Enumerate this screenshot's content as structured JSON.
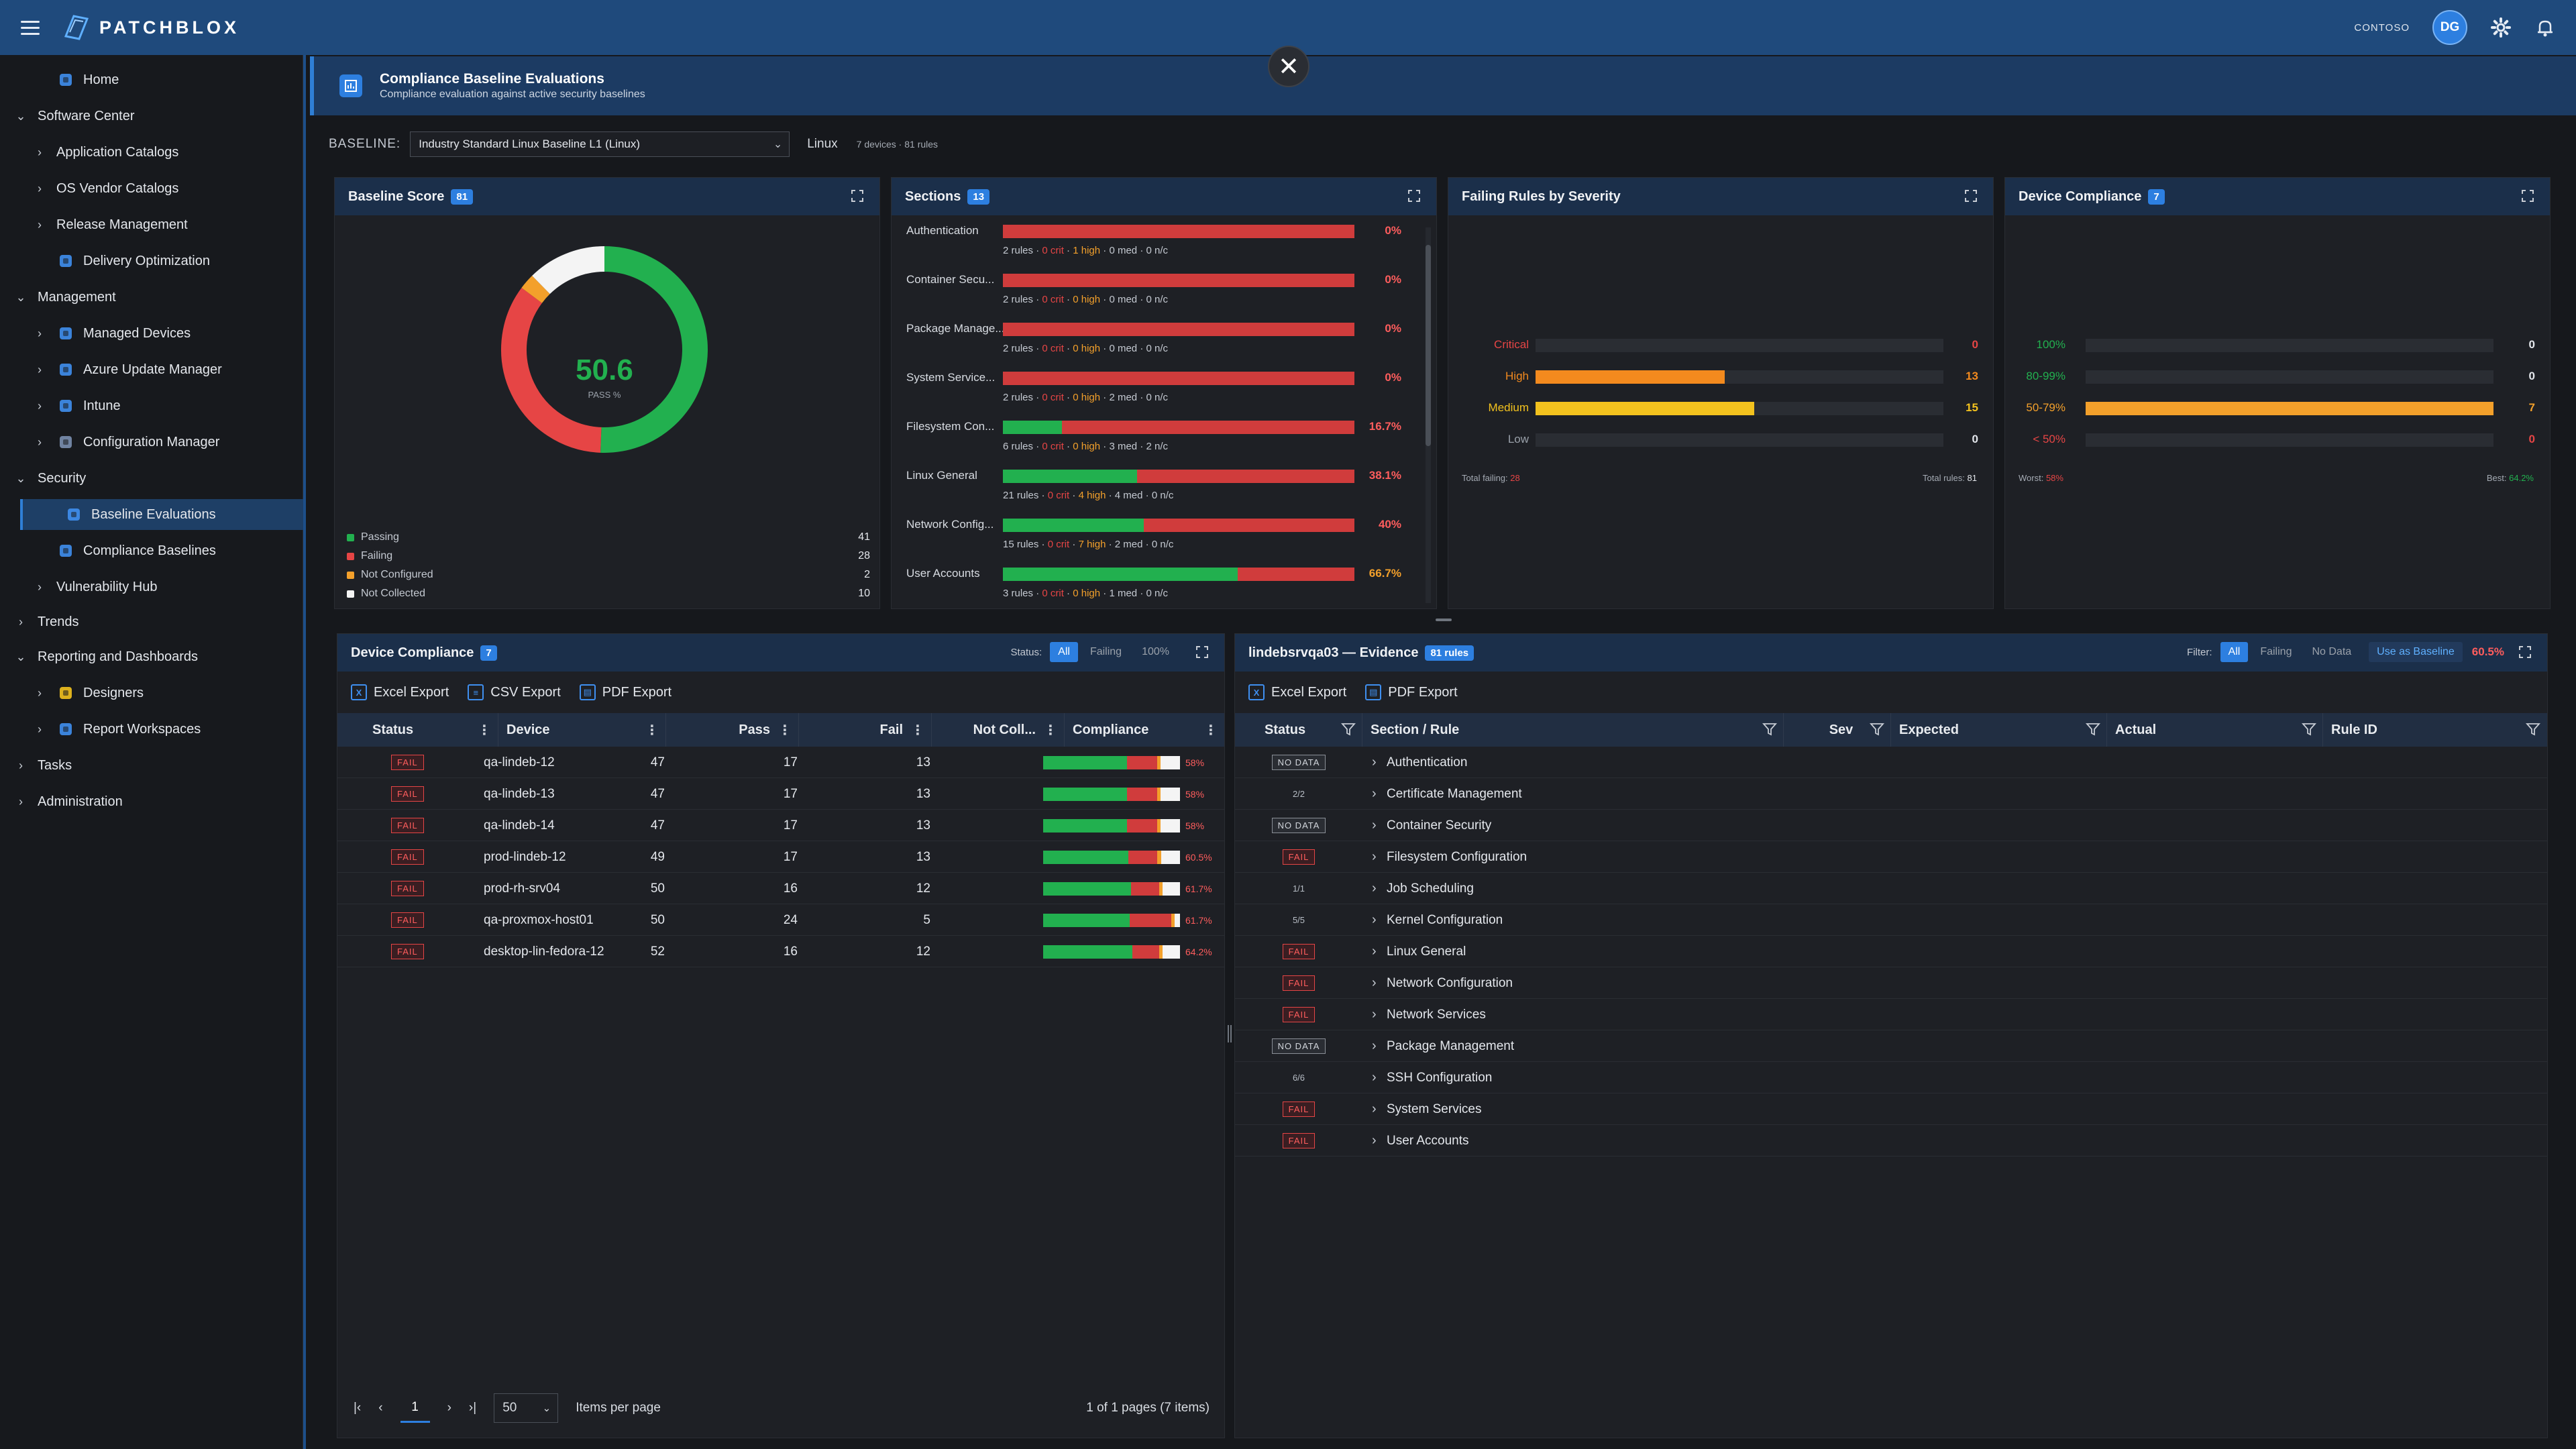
{
  "app": {
    "name": "PATCHBLOX",
    "tenant": "CONTOSO",
    "user_initials": "DG"
  },
  "sidebar": {
    "items": [
      {
        "label": "Home",
        "icon": "home-icon",
        "chev": "",
        "indent": 1,
        "active": false
      },
      {
        "label": "Software Center",
        "icon": "",
        "chev": "down",
        "indent": 0,
        "active": false
      },
      {
        "label": "Application Catalogs",
        "icon": "",
        "chev": "right",
        "indent": 1,
        "active": false
      },
      {
        "label": "OS Vendor Catalogs",
        "icon": "",
        "chev": "right",
        "indent": 1,
        "active": false
      },
      {
        "label": "Release Management",
        "icon": "",
        "chev": "right",
        "indent": 1,
        "active": false
      },
      {
        "label": "Delivery Optimization",
        "icon": "delivery-optimization-icon",
        "chev": "",
        "indent": 1,
        "active": false
      },
      {
        "label": "Management",
        "icon": "",
        "chev": "down",
        "indent": 0,
        "active": false
      },
      {
        "label": "Managed Devices",
        "icon": "globe-icon",
        "chev": "right",
        "indent": 1,
        "active": false
      },
      {
        "label": "Azure Update Manager",
        "icon": "gear-icon",
        "chev": "right",
        "indent": 1,
        "active": false
      },
      {
        "label": "Intune",
        "icon": "intune-icon",
        "chev": "right",
        "indent": 1,
        "active": false
      },
      {
        "label": "Configuration Manager",
        "icon": "configuration-manager-icon",
        "chev": "right",
        "indent": 1,
        "active": false
      },
      {
        "label": "Security",
        "icon": "",
        "chev": "down",
        "indent": 0,
        "active": false
      },
      {
        "label": "Baseline Evaluations",
        "icon": "baseline-evaluations-icon",
        "chev": "",
        "indent": 1,
        "active": true
      },
      {
        "label": "Compliance Baselines",
        "icon": "compliance-baselines-icon",
        "chev": "",
        "indent": 1,
        "active": false
      },
      {
        "label": "Vulnerability Hub",
        "icon": "",
        "chev": "right",
        "indent": 1,
        "active": false
      },
      {
        "label": "Trends",
        "icon": "",
        "chev": "right",
        "indent": 0,
        "active": false
      },
      {
        "label": "Reporting and Dashboards",
        "icon": "",
        "chev": "down",
        "indent": 0,
        "active": false
      },
      {
        "label": "Designers",
        "icon": "designers-icon",
        "chev": "right",
        "indent": 1,
        "active": false
      },
      {
        "label": "Report Workspaces",
        "icon": "report-workspaces-icon",
        "chev": "right",
        "indent": 1,
        "active": false
      },
      {
        "label": "Tasks",
        "icon": "",
        "chev": "right",
        "indent": 0,
        "active": false
      },
      {
        "label": "Administration",
        "icon": "",
        "chev": "right",
        "indent": 0,
        "active": false
      }
    ]
  },
  "banner": {
    "title": "Compliance Baseline Evaluations",
    "subtitle": "Compliance evaluation against active security baselines"
  },
  "baseline": {
    "label": "BASELINE:",
    "selected": "Industry Standard Linux Baseline L1 (Linux)",
    "os": "Linux",
    "meta": "7 devices · 81 rules"
  },
  "score_card": {
    "title": "Baseline Score",
    "badge": "81",
    "score": "50.6",
    "score_label": "PASS %",
    "legend": [
      {
        "label": "Passing",
        "value": "41",
        "color": "#22b04f"
      },
      {
        "label": "Failing",
        "value": "28",
        "color": "#e64545"
      },
      {
        "label": "Not Configured",
        "value": "2",
        "color": "#f3a02b"
      },
      {
        "label": "Not Collected",
        "value": "10",
        "color": "#f4f4f4"
      }
    ]
  },
  "sections_card": {
    "title": "Sections",
    "badge": "13",
    "items": [
      {
        "name": "Authentication",
        "pct": "0%",
        "pass": 0,
        "rules": "2 rules",
        "crit": "0 crit",
        "high": "1 high",
        "med": "0 med",
        "na": "0 n/c"
      },
      {
        "name": "Container Secu...",
        "pct": "0%",
        "pass": 0,
        "rules": "2 rules",
        "crit": "0 crit",
        "high": "0 high",
        "med": "0 med",
        "na": "0 n/c"
      },
      {
        "name": "Package Manage...",
        "pct": "0%",
        "pass": 0,
        "rules": "2 rules",
        "crit": "0 crit",
        "high": "0 high",
        "med": "0 med",
        "na": "0 n/c"
      },
      {
        "name": "System Service...",
        "pct": "0%",
        "pass": 0,
        "rules": "2 rules",
        "crit": "0 crit",
        "high": "0 high",
        "med": "2 med",
        "na": "0 n/c"
      },
      {
        "name": "Filesystem Con...",
        "pct": "16.7%",
        "pass": 16.7,
        "rules": "6 rules",
        "crit": "0 crit",
        "high": "0 high",
        "med": "3 med",
        "na": "2 n/c"
      },
      {
        "name": "Linux General",
        "pct": "38.1%",
        "pass": 38.1,
        "rules": "21 rules",
        "crit": "0 crit",
        "high": "4 high",
        "med": "4 med",
        "na": "0 n/c"
      },
      {
        "name": "Network Config...",
        "pct": "40%",
        "pass": 40,
        "rules": "15 rules",
        "crit": "0 crit",
        "high": "7 high",
        "med": "2 med",
        "na": "0 n/c"
      },
      {
        "name": "User Accounts",
        "pct": "66.7%",
        "pass": 66.7,
        "rules": "3 rules",
        "crit": "0 crit",
        "high": "0 high",
        "med": "1 med",
        "na": "0 n/c"
      }
    ]
  },
  "severity_card": {
    "title": "Failing Rules by Severity",
    "rows": [
      {
        "label": "Critical",
        "value": "0",
        "fraction": 0,
        "color": "#e64545"
      },
      {
        "label": "High",
        "value": "13",
        "fraction": 0.464,
        "color": "#f38a1e"
      },
      {
        "label": "Medium",
        "value": "15",
        "fraction": 0.536,
        "color": "#f3c21e"
      },
      {
        "label": "Low",
        "value": "0",
        "fraction": 0,
        "color": "#9aa1aa"
      }
    ],
    "total_failing_label": "Total failing:",
    "total_failing": "28",
    "total_rules_label": "Total rules:",
    "total_rules": "81"
  },
  "device_compliance_card": {
    "title": "Device Compliance",
    "badge": "7",
    "rows": [
      {
        "label": "100%",
        "value": "0",
        "fraction": 0,
        "color": "#22b04f"
      },
      {
        "label": "80-99%",
        "value": "0",
        "fraction": 0,
        "color": "#22b04f"
      },
      {
        "label": "50-79%",
        "value": "7",
        "fraction": 1,
        "color": "#f3a02b"
      },
      {
        "label": "< 50%",
        "value": "0",
        "fraction": 0,
        "color": "#e64545"
      }
    ],
    "worst_label": "Worst:",
    "worst": "58%",
    "best_label": "Best:",
    "best": "64.2%"
  },
  "device_table": {
    "title": "Device Compliance",
    "badge": "7",
    "status_label": "Status:",
    "chips": [
      "All",
      "Failing",
      "100%"
    ],
    "exports": [
      "Excel Export",
      "CSV Export",
      "PDF Export"
    ],
    "columns": [
      "Status",
      "Device",
      "Pass",
      "Fail",
      "Not Coll...",
      "Compliance"
    ],
    "rows": [
      {
        "status": "FAIL",
        "device": "qa-lindeb-12",
        "pass": "47",
        "fail": "17",
        "nc": "13",
        "pct": "58%",
        "p": 47,
        "f": 17,
        "n": 13
      },
      {
        "status": "FAIL",
        "device": "qa-lindeb-13",
        "pass": "47",
        "fail": "17",
        "nc": "13",
        "pct": "58%",
        "p": 47,
        "f": 17,
        "n": 13
      },
      {
        "status": "FAIL",
        "device": "qa-lindeb-14",
        "pass": "47",
        "fail": "17",
        "nc": "13",
        "pct": "58%",
        "p": 47,
        "f": 17,
        "n": 13
      },
      {
        "status": "FAIL",
        "device": "prod-lindeb-12",
        "pass": "49",
        "fail": "17",
        "nc": "13",
        "pct": "60.5%",
        "p": 49,
        "f": 17,
        "n": 13
      },
      {
        "status": "FAIL",
        "device": "prod-rh-srv04",
        "pass": "50",
        "fail": "16",
        "nc": "12",
        "pct": "61.7%",
        "p": 50,
        "f": 16,
        "n": 12
      },
      {
        "status": "FAIL",
        "device": "qa-proxmox-host01",
        "pass": "50",
        "fail": "24",
        "nc": "5",
        "pct": "61.7%",
        "p": 50,
        "f": 24,
        "n": 5
      },
      {
        "status": "FAIL",
        "device": "desktop-lin-fedora-12",
        "pass": "52",
        "fail": "16",
        "nc": "12",
        "pct": "64.2%",
        "p": 52,
        "f": 16,
        "n": 12
      }
    ],
    "pager": {
      "page": "1",
      "page_size": "50",
      "items_label": "Items per page",
      "info": "1 of 1 pages (7 items)"
    }
  },
  "evidence_table": {
    "title": "lindebsrvqa03 — Evidence",
    "badge": "81 rules",
    "filter_label": "Filter:",
    "chips": [
      "All",
      "Failing",
      "No Data"
    ],
    "use_baseline": "Use as Baseline",
    "pct": "60.5%",
    "exports": [
      "Excel Export",
      "PDF Export"
    ],
    "columns": [
      "Status",
      "Section / Rule",
      "Sev",
      "Expected",
      "Actual",
      "Rule ID"
    ],
    "rows": [
      {
        "status": "NO DATA",
        "kind": "nodata",
        "section": "Authentication"
      },
      {
        "status": "2/2",
        "kind": "frac",
        "section": "Certificate Management"
      },
      {
        "status": "NO DATA",
        "kind": "nodata",
        "section": "Container Security"
      },
      {
        "status": "FAIL",
        "kind": "fail",
        "section": "Filesystem Configuration"
      },
      {
        "status": "1/1",
        "kind": "frac",
        "section": "Job Scheduling"
      },
      {
        "status": "5/5",
        "kind": "frac",
        "section": "Kernel Configuration"
      },
      {
        "status": "FAIL",
        "kind": "fail",
        "section": "Linux General"
      },
      {
        "status": "FAIL",
        "kind": "fail",
        "section": "Network Configuration"
      },
      {
        "status": "FAIL",
        "kind": "fail",
        "section": "Network Services"
      },
      {
        "status": "NO DATA",
        "kind": "nodata",
        "section": "Package Management"
      },
      {
        "status": "6/6",
        "kind": "frac",
        "section": "SSH Configuration"
      },
      {
        "status": "FAIL",
        "kind": "fail",
        "section": "System Services"
      },
      {
        "status": "FAIL",
        "kind": "fail",
        "section": "User Accounts"
      }
    ]
  }
}
